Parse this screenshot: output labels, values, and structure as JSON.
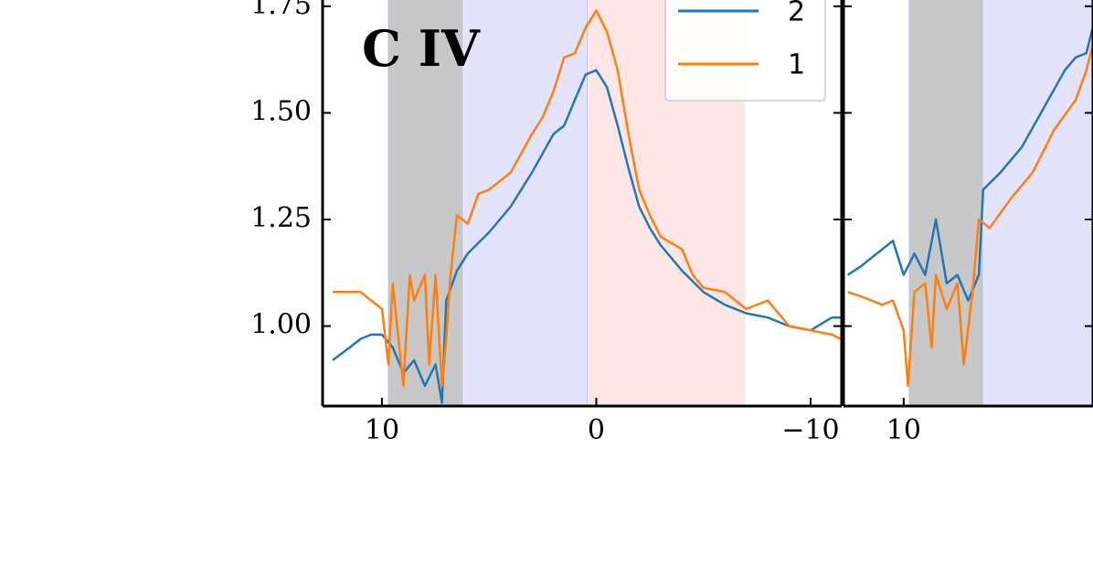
{
  "chart_data": [
    {
      "type": "line",
      "annotation": {
        "text": "C IV",
        "color": "#ff0000"
      },
      "xlim": [
        12.77,
        -11.45
      ],
      "ylim": [
        0.8125,
        1.769
      ],
      "xticks": [
        10,
        0,
        {
          "value": -10,
          "label": "−10"
        }
      ],
      "yticks": [
        {
          "value": 1,
          "label": "1.00"
        },
        1.25,
        {
          "value": 1.5,
          "label": "1.50"
        },
        1.75
      ],
      "regions": [
        {
          "x0": 9.7,
          "x1": 6.26,
          "color": "#c8c8c8"
        },
        {
          "x0": 6.26,
          "x1": 0.43,
          "color": "#e3e3fb"
        },
        {
          "x0": 0.43,
          "x1": -6.94,
          "color": "#fde6e6"
        }
      ],
      "legend": "upper right",
      "series": [
        {
          "name": "2",
          "color": "#1f77b4",
          "x": [
            12.3,
            11.5,
            11,
            10.5,
            10,
            9.5,
            9,
            8.5,
            8,
            7.5,
            7.2,
            7,
            6.5,
            6,
            5,
            4,
            3,
            2,
            1.5,
            1,
            0.5,
            0,
            -0.5,
            -1,
            -1.5,
            -2,
            -2.5,
            -3,
            -4,
            -5,
            -6,
            -7,
            -8,
            -9,
            -10,
            -11,
            -11.4
          ],
          "values": [
            0.92,
            0.95,
            0.97,
            0.98,
            0.98,
            0.95,
            0.89,
            0.92,
            0.86,
            0.91,
            0.82,
            1.06,
            1.13,
            1.17,
            1.22,
            1.28,
            1.36,
            1.45,
            1.47,
            1.53,
            1.59,
            1.6,
            1.56,
            1.47,
            1.37,
            1.28,
            1.23,
            1.19,
            1.13,
            1.08,
            1.05,
            1.03,
            1.02,
            1.0,
            0.99,
            1.02,
            1.02
          ]
        },
        {
          "name": "1",
          "color": "#ff7f0e",
          "x": [
            12.3,
            11.5,
            11,
            10.5,
            10,
            9.7,
            9.5,
            9,
            8.7,
            8.5,
            8,
            7.8,
            7.5,
            7.2,
            7,
            6.8,
            6.5,
            6,
            5.5,
            5,
            4,
            3,
            2.5,
            2,
            1.5,
            1,
            0.5,
            0,
            -0.5,
            -1,
            -1.5,
            -2,
            -2.5,
            -3,
            -4,
            -4.5,
            -5,
            -6,
            -7,
            -8,
            -9,
            -10,
            -11,
            -11.4
          ],
          "values": [
            1.08,
            1.08,
            1.08,
            1.06,
            1.04,
            0.91,
            1.1,
            0.86,
            1.12,
            1.06,
            1.12,
            0.91,
            1.12,
            0.86,
            0.97,
            1.12,
            1.26,
            1.24,
            1.31,
            1.32,
            1.36,
            1.45,
            1.49,
            1.55,
            1.63,
            1.64,
            1.7,
            1.74,
            1.69,
            1.6,
            1.45,
            1.32,
            1.26,
            1.21,
            1.18,
            1.12,
            1.09,
            1.08,
            1.04,
            1.06,
            1.0,
            0.99,
            0.98,
            0.97
          ]
        }
      ]
    },
    {
      "type": "line",
      "xlim": [
        12.8,
        1.19
      ],
      "ylim": [
        0.8125,
        1.769
      ],
      "xticks": [
        10
      ],
      "yticks": [
        1,
        1.25,
        1.5,
        1.75
      ],
      "regions": [
        {
          "x0": 9.74,
          "x1": 6.34,
          "color": "#c8c8c8"
        },
        {
          "x0": 6.34,
          "x1": 1.19,
          "color": "#e3e3fb"
        }
      ],
      "series": [
        {
          "color": "#1f77b4",
          "x": [
            12.6,
            12,
            11,
            10.5,
            10,
            9.5,
            9,
            8.5,
            8,
            7.5,
            7,
            6.5,
            6.3,
            5.5,
            4.5,
            3.5,
            2.5,
            2,
            1.5,
            1.2
          ],
          "values": [
            1.12,
            1.14,
            1.18,
            1.2,
            1.12,
            1.17,
            1.12,
            1.25,
            1.1,
            1.12,
            1.06,
            1.12,
            1.32,
            1.36,
            1.42,
            1.51,
            1.6,
            1.63,
            1.64,
            1.7
          ]
        },
        {
          "color": "#ff7f0e",
          "x": [
            12.6,
            12,
            11,
            10.5,
            10,
            9.8,
            9.5,
            9,
            8.7,
            8.5,
            8,
            7.5,
            7.2,
            6.8,
            6.5,
            6,
            5,
            4,
            3,
            2,
            1.5,
            1.2
          ],
          "values": [
            1.08,
            1.07,
            1.05,
            1.06,
            0.99,
            0.86,
            1.08,
            1.1,
            0.95,
            1.12,
            1.04,
            1.1,
            0.91,
            1.08,
            1.25,
            1.23,
            1.3,
            1.36,
            1.46,
            1.53,
            1.6,
            1.66
          ]
        }
      ]
    }
  ]
}
